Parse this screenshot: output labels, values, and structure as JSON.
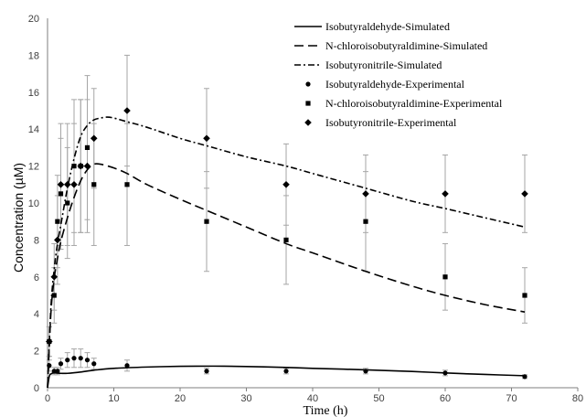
{
  "chart_data": {
    "type": "scatter",
    "xlabel": "Time (h)",
    "ylabel": "Concentration (µM)",
    "xlim": [
      0,
      80
    ],
    "ylim": [
      0,
      20
    ],
    "xticks": [
      0,
      10,
      20,
      30,
      40,
      50,
      60,
      70,
      80
    ],
    "yticks": [
      0,
      2,
      4,
      6,
      8,
      10,
      12,
      14,
      16,
      18,
      20
    ],
    "grid": false,
    "legend_position": "top-right",
    "simulated_series": [
      {
        "name": "Isobutyraldehyde-Simulated",
        "style": "solid",
        "x": [
          0,
          0.25,
          0.5,
          1,
          2,
          3,
          5,
          7,
          10,
          15,
          20,
          25,
          30,
          36,
          40,
          48,
          55,
          60,
          66,
          72
        ],
        "y": [
          0,
          0.6,
          0.75,
          0.8,
          0.78,
          0.78,
          0.85,
          0.95,
          1.05,
          1.12,
          1.16,
          1.17,
          1.15,
          1.1,
          1.05,
          0.97,
          0.88,
          0.8,
          0.72,
          0.65
        ]
      },
      {
        "name": "N-chloroisobutyraldimine-Simulated",
        "style": "dashed",
        "x": [
          0,
          0.5,
          1,
          1.5,
          2,
          3,
          4,
          5,
          6,
          7,
          8,
          10,
          12,
          15,
          20,
          24,
          30,
          36,
          40,
          48,
          55,
          60,
          66,
          72
        ],
        "y": [
          0,
          4.0,
          5.9,
          7.0,
          7.9,
          9.2,
          10.3,
          11.2,
          11.8,
          12.1,
          12.1,
          11.9,
          11.6,
          11.0,
          10.2,
          9.6,
          8.7,
          7.8,
          7.3,
          6.3,
          5.5,
          5.0,
          4.5,
          4.1
        ]
      },
      {
        "name": "Isobutyronitrile-Simulated",
        "style": "dashdot",
        "x": [
          0,
          0.5,
          1,
          1.5,
          2,
          3,
          4,
          5,
          6,
          7,
          8,
          9,
          10,
          12,
          15,
          20,
          24,
          30,
          36,
          40,
          48,
          55,
          60,
          66,
          72
        ],
        "y": [
          0,
          4.3,
          6.4,
          7.8,
          8.8,
          10.8,
          12.4,
          13.6,
          14.2,
          14.5,
          14.6,
          14.65,
          14.6,
          14.4,
          14.1,
          13.5,
          13.1,
          12.5,
          12.0,
          11.6,
          10.8,
          10.1,
          9.7,
          9.2,
          8.7
        ]
      }
    ],
    "experimental_series": [
      {
        "name": "Isobutyraldehyde-Experimental",
        "marker": "circle",
        "points": [
          {
            "x": 0.25,
            "y": 1.2,
            "err": 0.3
          },
          {
            "x": 1,
            "y": 0.9,
            "err": 0.2
          },
          {
            "x": 1.5,
            "y": 0.9,
            "err": 0.2
          },
          {
            "x": 2,
            "y": 1.3,
            "err": 0.3
          },
          {
            "x": 3,
            "y": 1.5,
            "err": 0.4
          },
          {
            "x": 4,
            "y": 1.6,
            "err": 0.5
          },
          {
            "x": 5,
            "y": 1.6,
            "err": 0.5
          },
          {
            "x": 6,
            "y": 1.5,
            "err": 0.4
          },
          {
            "x": 7,
            "y": 1.3,
            "err": 0.3
          },
          {
            "x": 12,
            "y": 1.2,
            "err": 0.3
          },
          {
            "x": 24,
            "y": 0.9,
            "err": 0.15
          },
          {
            "x": 36,
            "y": 0.9,
            "err": 0.15
          },
          {
            "x": 48,
            "y": 0.9,
            "err": 0.15
          },
          {
            "x": 60,
            "y": 0.8,
            "err": 0.15
          },
          {
            "x": 72,
            "y": 0.6,
            "err": 0.1
          }
        ]
      },
      {
        "name": "N-chloroisobutyraldimine-Experimental",
        "marker": "square",
        "points": [
          {
            "x": 0.25,
            "y": 2.5,
            "err": 0.8
          },
          {
            "x": 1,
            "y": 5.0,
            "err": 1.5
          },
          {
            "x": 1.5,
            "y": 9.0,
            "err": 2.5
          },
          {
            "x": 2,
            "y": 10.5,
            "err": 3.0
          },
          {
            "x": 3,
            "y": 10.0,
            "err": 3.0
          },
          {
            "x": 4,
            "y": 12.0,
            "err": 3.6
          },
          {
            "x": 5,
            "y": 12.0,
            "err": 3.6
          },
          {
            "x": 6,
            "y": 13.0,
            "err": 3.9
          },
          {
            "x": 7,
            "y": 11.0,
            "err": 3.3
          },
          {
            "x": 12,
            "y": 11.0,
            "err": 3.3
          },
          {
            "x": 24,
            "y": 9.0,
            "err": 2.7
          },
          {
            "x": 36,
            "y": 8.0,
            "err": 2.4
          },
          {
            "x": 48,
            "y": 9.0,
            "err": 2.7
          },
          {
            "x": 60,
            "y": 6.0,
            "err": 1.8
          },
          {
            "x": 72,
            "y": 5.0,
            "err": 1.5
          }
        ]
      },
      {
        "name": "Isobutyronitrile-Experimental",
        "marker": "diamond",
        "points": [
          {
            "x": 0.25,
            "y": 2.5,
            "err": 0.8
          },
          {
            "x": 1,
            "y": 6.0,
            "err": 1.8
          },
          {
            "x": 1.5,
            "y": 8.0,
            "err": 2.4
          },
          {
            "x": 2,
            "y": 11.0,
            "err": 3.3
          },
          {
            "x": 3,
            "y": 11.0,
            "err": 3.3
          },
          {
            "x": 4,
            "y": 11.0,
            "err": 3.3
          },
          {
            "x": 5,
            "y": 12.0,
            "err": 3.6
          },
          {
            "x": 6,
            "y": 12.0,
            "err": 3.6
          },
          {
            "x": 7,
            "y": 13.5,
            "err": 2.7
          },
          {
            "x": 12,
            "y": 15.0,
            "err": 3.0
          },
          {
            "x": 24,
            "y": 13.5,
            "err": 2.7
          },
          {
            "x": 36,
            "y": 11.0,
            "err": 2.2
          },
          {
            "x": 48,
            "y": 10.5,
            "err": 2.1
          },
          {
            "x": 60,
            "y": 10.5,
            "err": 2.1
          },
          {
            "x": 72,
            "y": 10.5,
            "err": 2.1
          }
        ]
      }
    ],
    "legend": [
      {
        "label": "Isobutyraldehyde-Simulated",
        "kind": "line",
        "style": "solid"
      },
      {
        "label": "N-chloroisobutyraldimine-Simulated",
        "kind": "line",
        "style": "dashed"
      },
      {
        "label": "Isobutyronitrile-Simulated",
        "kind": "line",
        "style": "dashdot"
      },
      {
        "label": "Isobutyraldehyde-Experimental",
        "kind": "marker",
        "marker": "circle"
      },
      {
        "label": "N-chloroisobutyraldimine-Experimental",
        "kind": "marker",
        "marker": "square"
      },
      {
        "label": "Isobutyronitrile-Experimental",
        "kind": "marker",
        "marker": "diamond"
      }
    ],
    "colors": {
      "series": "#000000",
      "error_bar": "#a6a6a6",
      "axis": "#7f7f7f",
      "background": "#ffffff"
    }
  }
}
